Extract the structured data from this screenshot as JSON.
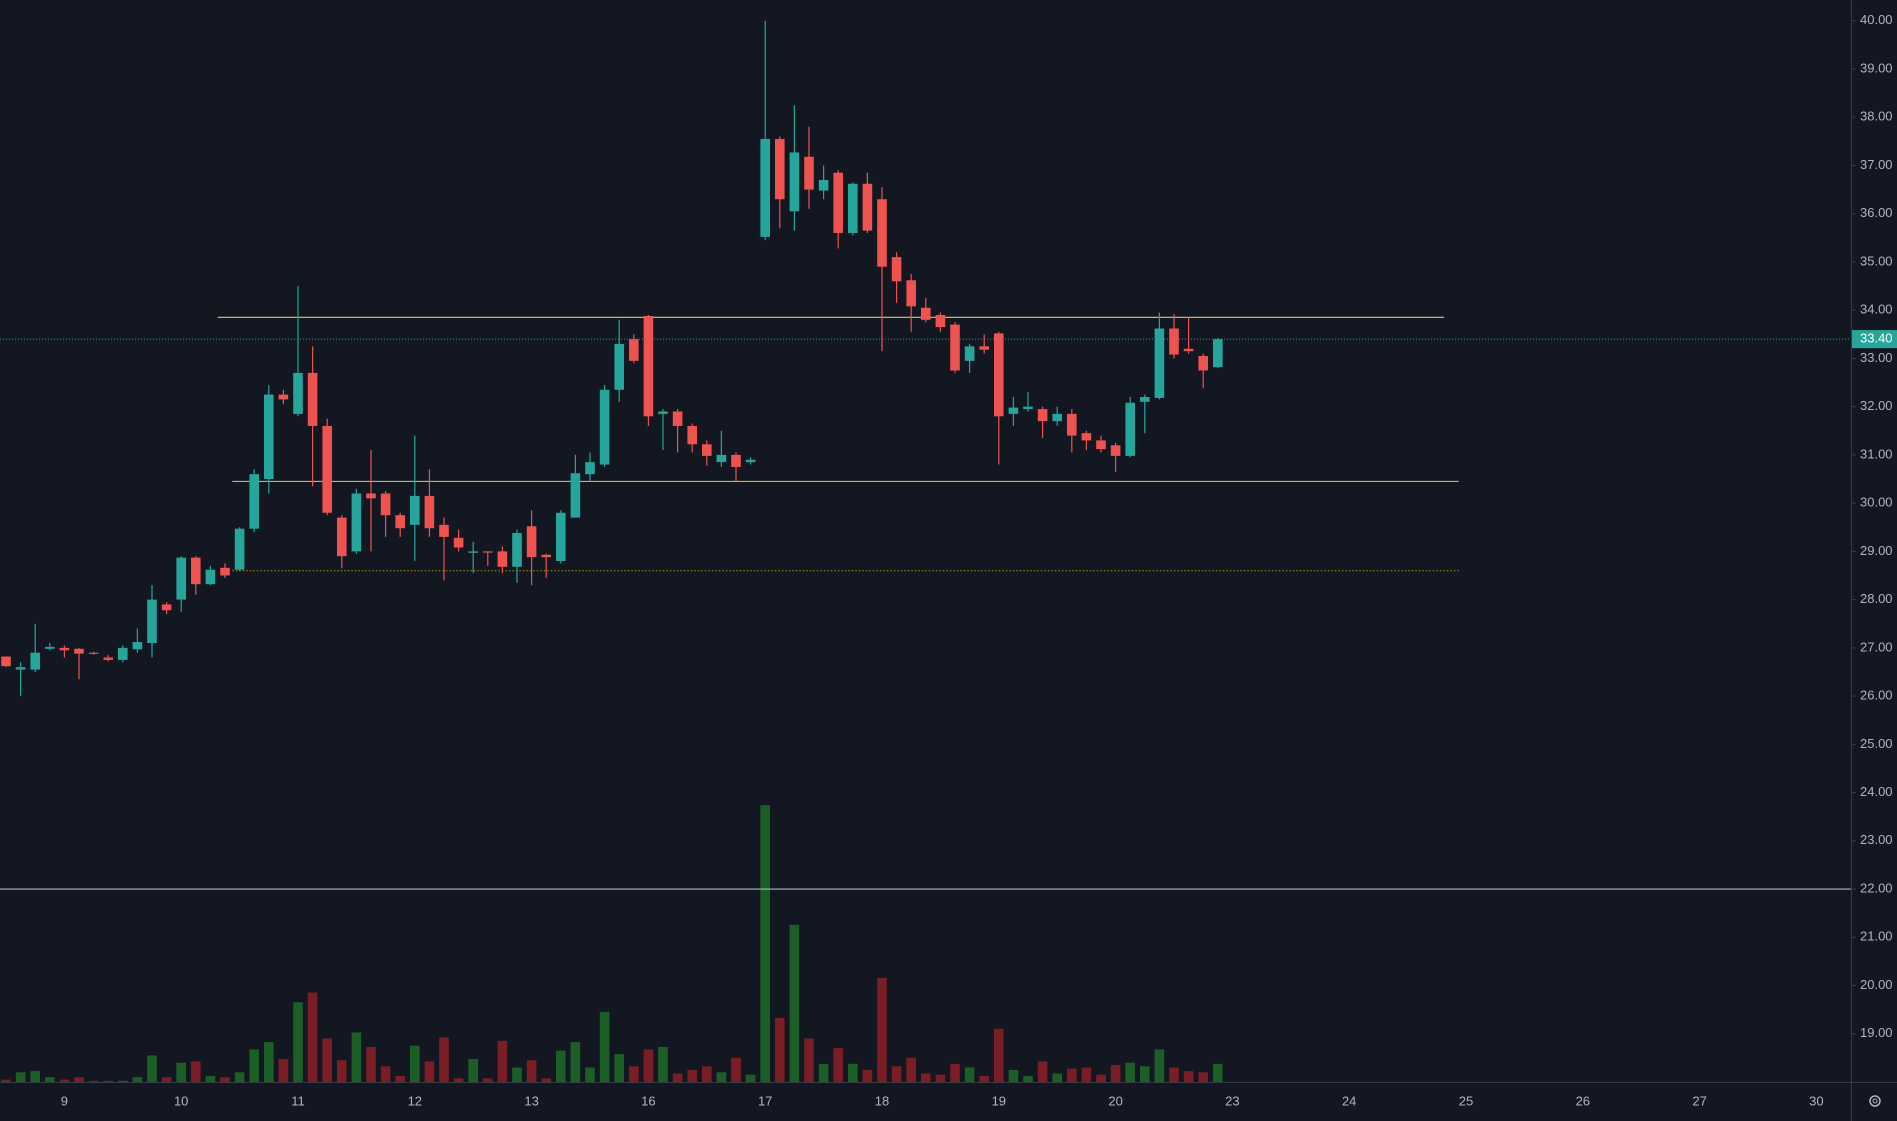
{
  "chart_data": {
    "type": "candlestick",
    "categories": [
      null,
      null,
      null,
      null,
      "9",
      null,
      null,
      null,
      null,
      null,
      null,
      null,
      "10",
      null,
      null,
      null,
      null,
      null,
      null,
      null,
      "11",
      null,
      null,
      null,
      null,
      null,
      null,
      null,
      "12",
      null,
      null,
      null,
      null,
      null,
      null,
      null,
      "13",
      null,
      null,
      null,
      null,
      null,
      null,
      null,
      "16",
      null,
      null,
      null,
      null,
      null,
      null,
      null,
      "17",
      null,
      null,
      null,
      null,
      null,
      null,
      null,
      "18",
      null,
      null,
      null,
      null,
      null,
      null,
      null,
      "19",
      null,
      null,
      null,
      null,
      null,
      null,
      null,
      "20",
      null,
      null,
      null,
      null,
      null,
      null,
      null,
      "23",
      null,
      null,
      null,
      null,
      null,
      null,
      null,
      "24",
      null,
      null,
      null,
      null,
      null,
      null,
      null,
      "25",
      null,
      null,
      null,
      null,
      null,
      null,
      null,
      "26",
      null,
      null,
      null,
      null,
      null,
      null,
      null,
      "27",
      null,
      null,
      null,
      null,
      null,
      null,
      null,
      "30",
      null,
      null
    ],
    "open": [
      26.82,
      26.55,
      26.55,
      26.98,
      27.0,
      26.98,
      26.9,
      26.8,
      26.75,
      26.97,
      27.1,
      27.9,
      28.0,
      28.87,
      28.32,
      28.66,
      28.62,
      29.47,
      30.5,
      32.25,
      31.85,
      32.7,
      31.6,
      29.7,
      29.0,
      30.2,
      30.2,
      29.75,
      29.55,
      30.15,
      29.55,
      29.28,
      28.97,
      29.0,
      29.0,
      28.68,
      29.52,
      28.93,
      28.8,
      29.7,
      30.6,
      30.8,
      32.35,
      33.4,
      33.88,
      31.85,
      31.9,
      31.6,
      31.22,
      30.85,
      31.0,
      30.85,
      35.52,
      37.55,
      36.05,
      37.18,
      36.48,
      36.85,
      35.6,
      36.62,
      36.3,
      35.1,
      34.62,
      34.05,
      33.9,
      33.7,
      32.95,
      33.25,
      33.52,
      31.85,
      31.95,
      31.95,
      31.7,
      31.85,
      31.45,
      31.3,
      31.2,
      30.98,
      32.1,
      32.18,
      33.62,
      33.2,
      33.05,
      32.82,
      null,
      null,
      null,
      null,
      null,
      null,
      null,
      null,
      null,
      null,
      null,
      null,
      null,
      null,
      null,
      null,
      null,
      null,
      null,
      null,
      null,
      null,
      null,
      null,
      null,
      null,
      null,
      null,
      null,
      null,
      null,
      null,
      null,
      null,
      null,
      null,
      null,
      null,
      null,
      null,
      null,
      null,
      null
    ],
    "high": [
      26.82,
      26.7,
      27.5,
      27.1,
      27.05,
      27.0,
      26.92,
      26.85,
      27.05,
      27.4,
      28.3,
      27.95,
      28.9,
      28.9,
      28.7,
      28.75,
      29.5,
      30.7,
      32.45,
      32.35,
      34.5,
      33.25,
      31.75,
      29.75,
      30.3,
      31.1,
      30.25,
      29.8,
      31.4,
      30.7,
      29.7,
      29.45,
      29.2,
      29.0,
      29.1,
      29.45,
      29.85,
      28.95,
      29.85,
      31.0,
      31.05,
      32.45,
      33.8,
      33.5,
      33.9,
      31.95,
      31.95,
      31.65,
      31.3,
      31.5,
      31.05,
      30.95,
      40.0,
      37.6,
      38.25,
      37.8,
      37.0,
      36.9,
      36.65,
      36.85,
      36.55,
      35.2,
      34.75,
      34.25,
      33.95,
      33.75,
      33.3,
      33.5,
      33.55,
      32.2,
      32.3,
      32.0,
      32.0,
      31.95,
      31.5,
      31.4,
      31.25,
      32.2,
      32.25,
      33.95,
      33.92,
      33.85,
      33.1,
      33.42,
      null,
      null,
      null,
      null,
      null,
      null,
      null,
      null,
      null,
      null,
      null,
      null,
      null,
      null,
      null,
      null,
      null,
      null,
      null,
      null,
      null,
      null,
      null,
      null,
      null,
      null,
      null,
      null,
      null,
      null,
      null,
      null,
      null,
      null,
      null,
      null,
      null,
      null,
      null,
      null,
      null,
      null,
      null
    ],
    "low": [
      26.6,
      26.0,
      26.5,
      26.95,
      26.8,
      26.35,
      26.86,
      26.72,
      26.7,
      26.9,
      26.8,
      27.7,
      27.75,
      28.1,
      28.3,
      28.45,
      28.6,
      29.4,
      30.2,
      32.05,
      31.8,
      30.35,
      29.75,
      28.65,
      28.95,
      29.0,
      29.3,
      29.3,
      28.8,
      29.3,
      28.4,
      29.0,
      28.55,
      28.7,
      28.55,
      28.35,
      28.3,
      28.45,
      28.75,
      29.7,
      30.45,
      30.75,
      32.1,
      32.9,
      31.6,
      31.1,
      31.05,
      31.05,
      30.78,
      30.75,
      30.45,
      30.8,
      35.45,
      35.7,
      35.65,
      36.1,
      36.3,
      35.28,
      35.55,
      35.6,
      33.15,
      34.15,
      33.55,
      33.75,
      33.55,
      32.7,
      32.7,
      33.1,
      30.8,
      31.6,
      31.9,
      31.35,
      31.6,
      31.05,
      31.1,
      31.05,
      30.65,
      30.95,
      31.45,
      32.15,
      33.0,
      33.1,
      32.38,
      32.8,
      null,
      null,
      null,
      null,
      null,
      null,
      null,
      null,
      null,
      null,
      null,
      null,
      null,
      null,
      null,
      null,
      null,
      null,
      null,
      null,
      null,
      null,
      null,
      null,
      null,
      null,
      null,
      null,
      null,
      null,
      null,
      null,
      null,
      null,
      null,
      null,
      null,
      null,
      null,
      null,
      null,
      null,
      null
    ],
    "close": [
      26.62,
      26.6,
      26.9,
      27.02,
      26.95,
      26.88,
      26.88,
      26.75,
      27.0,
      27.12,
      28.0,
      27.78,
      28.87,
      28.32,
      28.62,
      28.5,
      29.47,
      30.6,
      32.25,
      32.15,
      32.7,
      31.6,
      29.8,
      28.9,
      30.2,
      30.1,
      29.75,
      29.48,
      30.15,
      29.48,
      29.3,
      29.08,
      29.0,
      28.98,
      28.68,
      29.38,
      28.88,
      28.88,
      29.8,
      30.62,
      30.85,
      32.35,
      33.3,
      32.95,
      31.8,
      31.9,
      31.6,
      31.22,
      30.98,
      31.0,
      30.75,
      30.9,
      37.55,
      36.3,
      37.27,
      36.5,
      36.7,
      35.6,
      36.62,
      35.65,
      34.9,
      34.6,
      34.08,
      33.8,
      33.65,
      32.75,
      33.25,
      33.18,
      31.8,
      31.98,
      32.0,
      31.7,
      31.85,
      31.4,
      31.3,
      31.12,
      30.98,
      32.08,
      32.2,
      33.62,
      33.08,
      33.15,
      32.75,
      33.4,
      null,
      null,
      null,
      null,
      null,
      null,
      null,
      null,
      null,
      null,
      null,
      null,
      null,
      null,
      null,
      null,
      null,
      null,
      null,
      null,
      null,
      null,
      null,
      null,
      null,
      null,
      null,
      null,
      null,
      null,
      null,
      null,
      null,
      null,
      null,
      null,
      null,
      null,
      null,
      null,
      null,
      null,
      null
    ],
    "up_color": "#26a69a",
    "down_color": "#ef5350",
    "volume": {
      "values": [
        2,
        8,
        9,
        4,
        2,
        4,
        1,
        1,
        1,
        4,
        22,
        4,
        16,
        17,
        5,
        4,
        8,
        27,
        33,
        19,
        66,
        74,
        36,
        18,
        41,
        29,
        13,
        5,
        30,
        17,
        37,
        3,
        19,
        3,
        34,
        12,
        18,
        3,
        26,
        33,
        12,
        58,
        23,
        13,
        27,
        29,
        7,
        10,
        13,
        8,
        20,
        6,
        229,
        53,
        130,
        36,
        15,
        28,
        15,
        10,
        86,
        13,
        20,
        7,
        6,
        15,
        12,
        5,
        44,
        10,
        5,
        17,
        7,
        11,
        12,
        6,
        14,
        16,
        13,
        27,
        12,
        9,
        8,
        15,
        null,
        null,
        null,
        null,
        null,
        null,
        null,
        null,
        null,
        null,
        null,
        null,
        null,
        null,
        null,
        null,
        null,
        null,
        null,
        null,
        null,
        null,
        null,
        null,
        null,
        null,
        null,
        null,
        null,
        null,
        null,
        null,
        null,
        null,
        null,
        null,
        null,
        null,
        null,
        null,
        null,
        null,
        null
      ],
      "ylim": [
        0,
        895
      ],
      "up_color": "#1b5e26",
      "down_color": "#7a1d24"
    },
    "ylim": [
      18.0,
      40.43
    ],
    "yticks": [
      {
        "value": 19,
        "label": "19.00"
      },
      {
        "value": 20,
        "label": "20.00"
      },
      {
        "value": 21,
        "label": "21.00"
      },
      {
        "value": 22,
        "label": "22.00"
      },
      {
        "value": 23,
        "label": "23.00"
      },
      {
        "value": 24,
        "label": "24.00"
      },
      {
        "value": 25,
        "label": "25.00"
      },
      {
        "value": 26,
        "label": "26.00"
      },
      {
        "value": 27,
        "label": "27.00"
      },
      {
        "value": 28,
        "label": "28.00"
      },
      {
        "value": 29,
        "label": "29.00"
      },
      {
        "value": 30,
        "label": "30.00"
      },
      {
        "value": 31,
        "label": "31.00"
      },
      {
        "value": 32,
        "label": "32.00"
      },
      {
        "value": 33,
        "label": "33.00"
      },
      {
        "value": 34,
        "label": "34.00"
      },
      {
        "value": 35,
        "label": "35.00"
      },
      {
        "value": 36,
        "label": "36.00"
      },
      {
        "value": 37,
        "label": "37.00"
      },
      {
        "value": 38,
        "label": "38.00"
      },
      {
        "value": 39,
        "label": "39.00"
      },
      {
        "value": 40,
        "label": "40.00"
      }
    ],
    "grid": false,
    "last_price": {
      "value": 33.4,
      "label": "33.40",
      "color": "#26a69a"
    },
    "hlines": [
      {
        "value": 33.85,
        "color": "#c9b84a",
        "style": "solid",
        "start": 15,
        "end": 98
      },
      {
        "value": 30.45,
        "color": "#c9b84a",
        "style": "solid",
        "start": 16,
        "end": 99
      },
      {
        "value": 28.6,
        "color": "#8f8a22",
        "style": "dotted",
        "start": 16,
        "end": 99
      },
      {
        "value": 22.0,
        "color": "#b2b5be",
        "style": "solid",
        "start": 0,
        "end": 126
      }
    ]
  }
}
